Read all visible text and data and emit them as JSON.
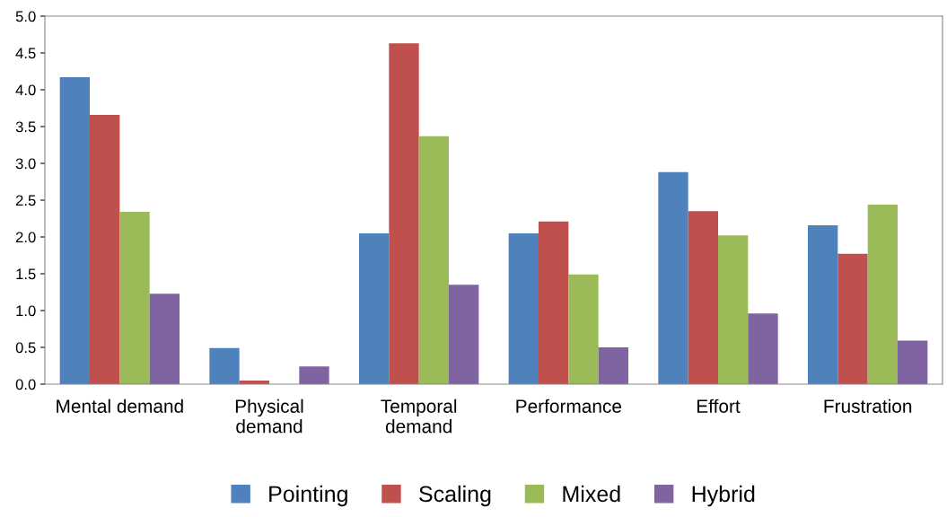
{
  "chart_data": {
    "type": "bar",
    "categories": [
      "Mental demand",
      "Physical\ndemand",
      "Temporal\ndemand",
      "Performance",
      "Effort",
      "Frustration"
    ],
    "series": [
      {
        "name": "Pointing",
        "color": "#4f81bd",
        "values": [
          4.17,
          0.49,
          2.05,
          2.05,
          2.88,
          2.16
        ]
      },
      {
        "name": "Scaling",
        "color": "#c0504d",
        "values": [
          3.66,
          0.05,
          4.63,
          2.21,
          2.35,
          1.77
        ]
      },
      {
        "name": "Mixed",
        "color": "#9bbb59",
        "values": [
          2.34,
          0.0,
          3.37,
          1.49,
          2.02,
          2.44
        ]
      },
      {
        "name": "Hybrid",
        "color": "#8064a2",
        "values": [
          1.23,
          0.24,
          1.35,
          0.5,
          0.96,
          0.59
        ]
      }
    ],
    "ylim": [
      0,
      5
    ],
    "yticks": [
      {
        "value": 0,
        "label": "0.0"
      },
      {
        "value": 0.5,
        "label": "0.5"
      },
      {
        "value": 1,
        "label": "1.0"
      },
      {
        "value": 1.5,
        "label": "1.5"
      },
      {
        "value": 2,
        "label": "2.0"
      },
      {
        "value": 2.5,
        "label": "2.5"
      },
      {
        "value": 3,
        "label": "3.0"
      },
      {
        "value": 3.5,
        "label": "3.5"
      },
      {
        "value": 4,
        "label": "4.0"
      },
      {
        "value": 4.5,
        "label": "4.5"
      },
      {
        "value": 5,
        "label": "5.0"
      }
    ],
    "grid": false,
    "legend": "bottom"
  }
}
